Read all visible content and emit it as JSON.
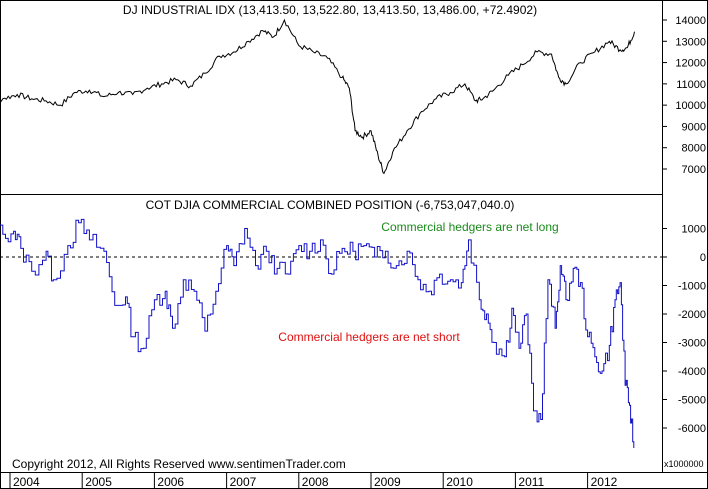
{
  "chart_data": [
    {
      "type": "line",
      "title": "DJ INDUSTRIAL IDX (13,413.50, 13,522.80, 13,413.50, 13,486.00, +72.4902)",
      "xlabel": "",
      "ylabel": "",
      "ylim": [
        6300,
        14500
      ],
      "yticks": [
        7000,
        8000,
        9000,
        10000,
        11000,
        12000,
        13000,
        14000
      ],
      "grid": false,
      "line_color": "#000000",
      "series": [
        {
          "name": "",
          "x": [
            2003.5,
            2003.7,
            2003.9,
            2004.1,
            2004.3,
            2004.5,
            2004.7,
            2004.9,
            2005.1,
            2005.3,
            2005.5,
            2005.7,
            2005.9,
            2006.1,
            2006.3,
            2006.5,
            2006.7,
            2006.9,
            2007.1,
            2007.3,
            2007.5,
            2007.65,
            2007.8,
            2008.0,
            2008.2,
            2008.4,
            2008.6,
            2008.7,
            2008.78,
            2008.88,
            2009.0,
            2009.1,
            2009.18,
            2009.3,
            2009.5,
            2009.7,
            2009.9,
            2010.1,
            2010.3,
            2010.45,
            2010.55,
            2010.7,
            2010.9,
            2011.1,
            2011.3,
            2011.5,
            2011.6,
            2011.7,
            2011.9,
            2012.1,
            2012.3,
            2012.45,
            2012.55,
            2012.65
          ],
          "y": [
            9800,
            10200,
            10300,
            10500,
            10300,
            10200,
            10000,
            10600,
            10700,
            10400,
            10600,
            10500,
            10800,
            11000,
            11200,
            10900,
            11500,
            12300,
            12500,
            13000,
            13500,
            13200,
            14000,
            12800,
            12500,
            12200,
            11300,
            10800,
            8800,
            8500,
            8800,
            7600,
            6800,
            7800,
            8800,
            9700,
            10300,
            10600,
            11000,
            10200,
            10300,
            10700,
            11400,
            11900,
            12500,
            12400,
            11300,
            11000,
            12000,
            12500,
            13000,
            12600,
            12700,
            13450
          ]
        }
      ]
    },
    {
      "type": "line",
      "title": "COT DJIA COMMERCIAL COMBINED POSITION (-6,753,047,040.0)",
      "xlabel": "",
      "ylabel": "",
      "unit_label": "x1000000",
      "ylim": [
        -7000,
        1800
      ],
      "yticks": [
        -6000,
        -5000,
        -4000,
        -3000,
        -2000,
        -1000,
        0,
        1000
      ],
      "zero_line": "dashed",
      "grid": false,
      "line_color": "#1010c8",
      "annotations": [
        {
          "text": "Commercial hedgers are net long",
          "color": "#1a8a1a"
        },
        {
          "text": "Commercial hedgers are net short",
          "color": "#e01010"
        }
      ],
      "x_ticks": [
        "2004",
        "2005",
        "2006",
        "2007",
        "2008",
        "2009",
        "2010",
        "2011",
        "2012"
      ],
      "series": [
        {
          "name": "",
          "x": [
            2003.5,
            2003.7,
            2003.9,
            2004.05,
            2004.15,
            2004.3,
            2004.5,
            2004.6,
            2004.8,
            2004.95,
            2005.1,
            2005.3,
            2005.45,
            2005.6,
            2005.7,
            2005.85,
            2006.0,
            2006.15,
            2006.25,
            2006.4,
            2006.55,
            2006.7,
            2006.85,
            2007.0,
            2007.1,
            2007.25,
            2007.4,
            2007.55,
            2007.7,
            2007.85,
            2008.0,
            2008.15,
            2008.3,
            2008.45,
            2008.6,
            2008.75,
            2008.9,
            2009.05,
            2009.2,
            2009.35,
            2009.5,
            2009.65,
            2009.8,
            2009.95,
            2010.1,
            2010.25,
            2010.35,
            2010.5,
            2010.6,
            2010.7,
            2010.85,
            2010.95,
            2011.05,
            2011.15,
            2011.25,
            2011.35,
            2011.45,
            2011.55,
            2011.62,
            2011.7,
            2011.8,
            2011.9,
            2012.0,
            2012.1,
            2012.2,
            2012.3,
            2012.38,
            2012.45,
            2012.52,
            2012.58,
            2012.64
          ],
          "y": [
            1300,
            1000,
            800,
            900,
            300,
            -500,
            200,
            -800,
            400,
            1200,
            600,
            200,
            -1700,
            -1400,
            -2800,
            -3200,
            -1500,
            -1200,
            -2500,
            -800,
            -1200,
            -2600,
            -1200,
            400,
            -300,
            1000,
            -300,
            200,
            -400,
            -600,
            400,
            200,
            600,
            -600,
            300,
            200,
            400,
            0,
            200,
            -300,
            200,
            -800,
            -1200,
            -600,
            -800,
            -900,
            600,
            -1500,
            -2000,
            -3000,
            -3500,
            -1800,
            -3200,
            -2000,
            -5400,
            -5700,
            -800,
            -2500,
            -300,
            -1500,
            -400,
            -900,
            -2800,
            -3500,
            -4000,
            -3100,
            -1500,
            -900,
            -4500,
            -5200,
            -6700
          ]
        }
      ]
    }
  ],
  "footer": {
    "copyright": "Copyright 2012, All Rights Reserved  www.sentimenTrader.com"
  }
}
